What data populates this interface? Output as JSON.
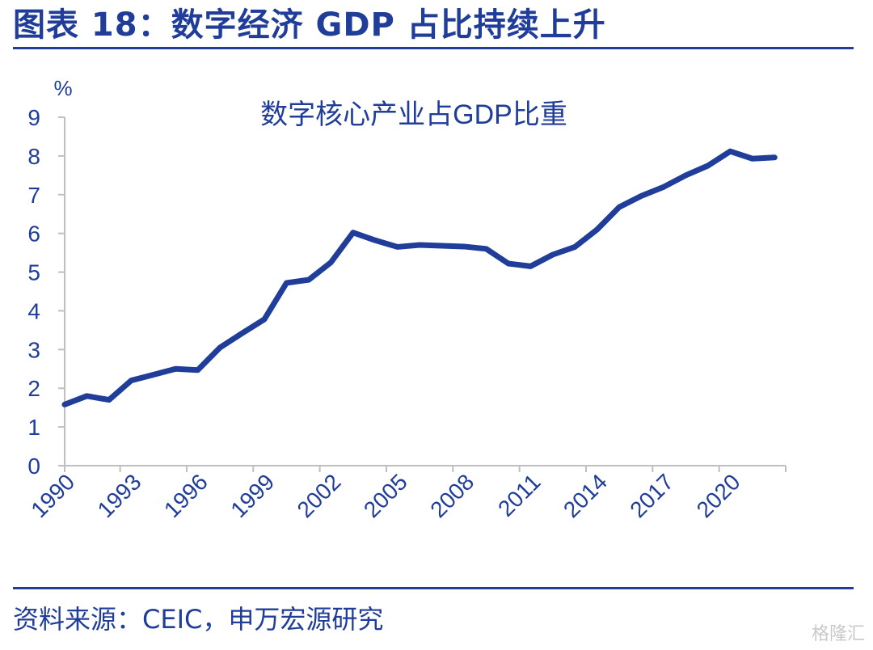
{
  "figure": {
    "title": "图表 18：数字经济 GDP 占比持续上升",
    "source": "资料来源：CEIC，申万宏源研究",
    "watermark": "格隆汇"
  },
  "colors": {
    "primary": "#1f3d99",
    "axis": "#bfbfbf"
  },
  "chart_data": {
    "type": "line",
    "title": "数字核心产业占GDP比重",
    "ylabel": "%",
    "xlabel": "",
    "ylim": [
      0,
      9
    ],
    "yticks": [
      0,
      1,
      2,
      3,
      4,
      5,
      6,
      7,
      8,
      9
    ],
    "x_tick_labels": [
      "1990",
      "1993",
      "1996",
      "1999",
      "2002",
      "2005",
      "2008",
      "2011",
      "2014",
      "2017",
      "2020"
    ],
    "grid": false,
    "series": [
      {
        "name": "数字核心产业占GDP比重",
        "x": [
          1990,
          1991,
          1992,
          1993,
          1994,
          1995,
          1996,
          1997,
          1998,
          1999,
          2000,
          2001,
          2002,
          2003,
          2004,
          2005,
          2006,
          2007,
          2008,
          2009,
          2010,
          2011,
          2012,
          2013,
          2014,
          2015,
          2016,
          2017,
          2018,
          2019,
          2020,
          2021,
          2022
        ],
        "values": [
          1.58,
          1.8,
          1.7,
          2.2,
          2.35,
          2.5,
          2.47,
          3.05,
          3.42,
          3.78,
          4.72,
          4.8,
          5.25,
          6.02,
          5.82,
          5.65,
          5.7,
          5.68,
          5.66,
          5.6,
          5.22,
          5.15,
          5.45,
          5.65,
          6.1,
          6.68,
          6.97,
          7.2,
          7.5,
          7.75,
          8.12,
          7.93,
          7.96
        ]
      }
    ]
  }
}
